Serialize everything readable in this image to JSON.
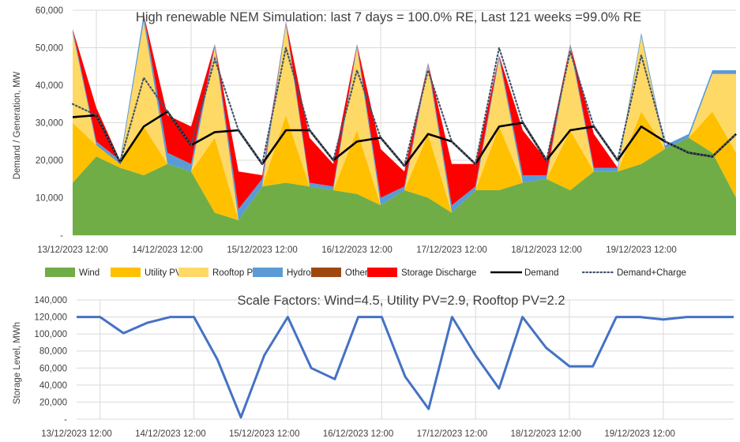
{
  "colors": {
    "wind": "#70AD47",
    "utility_pv": "#FFC000",
    "rooftop_pv": "#FFD966",
    "hydro": "#5B9BD5",
    "other": "#9E480E",
    "storage_discharge": "#FF0000",
    "demand": "#000000",
    "demand_charge": "#44546A",
    "storage_level": "#4472C4",
    "grid": "#D9D9D9",
    "text": "#404040"
  },
  "chart_data": [
    {
      "type": "area",
      "title": "High renewable NEM Simulation: last 7 days = 100.0% RE, Last 121 weeks =99.0% RE",
      "xlabel": "",
      "ylabel": "Demand / Generation, MW",
      "ylim": [
        0,
        60000
      ],
      "ytick_labels": [
        "-",
        "10,000",
        "20,000",
        "30,000",
        "40,000",
        "50,000",
        "60,000"
      ],
      "xtick_labels": [
        "13/12/2023 12:00",
        "14/12/2023 12:00",
        "15/12/2023 12:00",
        "16/12/2023 12:00",
        "17/12/2023 12:00",
        "18/12/2023 12:00",
        "19/12/2023 12:00"
      ],
      "x_hours": [
        0,
        6,
        12,
        18,
        24,
        30,
        36,
        42,
        48,
        54,
        60,
        66,
        72,
        78,
        84,
        90,
        96,
        102,
        108,
        114,
        120,
        126,
        132,
        138,
        144,
        150,
        156,
        162,
        168
      ],
      "stack_order": [
        "Wind",
        "Utility PV",
        "Rooftop PV",
        "Hydro",
        "Other",
        "Storage Discharge"
      ],
      "series": [
        {
          "name": "Wind",
          "style": "area",
          "values": [
            14000,
            21000,
            18000,
            16000,
            19000,
            17000,
            6000,
            4000,
            13000,
            14000,
            13000,
            12000,
            11000,
            8000,
            12000,
            10000,
            6000,
            12000,
            12000,
            14000,
            15000,
            12000,
            17000,
            17000,
            19000,
            23000,
            26000,
            22000,
            10000
          ]
        },
        {
          "name": "Utility PV",
          "style": "area",
          "values": [
            16000,
            3000,
            1000,
            13000,
            0,
            0,
            20000,
            0,
            0,
            18000,
            0,
            0,
            17000,
            0,
            0,
            17000,
            0,
            0,
            17000,
            0,
            0,
            16000,
            0,
            0,
            14000,
            0,
            0,
            11000,
            12000
          ]
        },
        {
          "name": "Rooftop PV",
          "style": "area",
          "values": [
            24000,
            0,
            0,
            28000,
            0,
            0,
            24000,
            0,
            0,
            24000,
            0,
            0,
            22000,
            0,
            0,
            18000,
            0,
            0,
            18000,
            0,
            0,
            22000,
            0,
            0,
            20000,
            0,
            0,
            10000,
            21000
          ]
        },
        {
          "name": "Hydro",
          "style": "area",
          "values": [
            1000,
            1000,
            1000,
            2000,
            3000,
            2000,
            1000,
            3000,
            2000,
            1000,
            1000,
            1000,
            1000,
            2000,
            1000,
            1000,
            2000,
            1000,
            1000,
            2000,
            1000,
            1000,
            1000,
            1000,
            1000,
            1000,
            1000,
            1000,
            1000
          ]
        },
        {
          "name": "Other",
          "style": "area",
          "values": [
            0,
            0,
            0,
            0,
            0,
            0,
            0,
            0,
            0,
            0,
            0,
            0,
            0,
            0,
            0,
            0,
            0,
            0,
            0,
            0,
            0,
            0,
            0,
            0,
            0,
            0,
            0,
            0,
            0
          ]
        },
        {
          "name": "Storage Discharge",
          "style": "area",
          "values": [
            0,
            9000,
            0,
            0,
            10000,
            10000,
            0,
            10000,
            1000,
            0,
            12000,
            6000,
            0,
            13000,
            4000,
            0,
            11000,
            6000,
            0,
            12000,
            4000,
            0,
            9000,
            0,
            0,
            0,
            0,
            0,
            0
          ]
        },
        {
          "name": "Demand",
          "style": "line",
          "values": [
            31500,
            32000,
            19500,
            29000,
            33000,
            24000,
            27500,
            28000,
            19000,
            28000,
            28000,
            20000,
            25000,
            26000,
            18500,
            27000,
            25000,
            19000,
            29000,
            30000,
            20000,
            28000,
            29000,
            20000,
            29000,
            25000,
            22000,
            21000,
            27000
          ]
        },
        {
          "name": "Demand+Charge",
          "style": "dotted-line",
          "values": [
            35000,
            32000,
            19500,
            42000,
            33000,
            24000,
            47000,
            28000,
            19000,
            50000,
            28000,
            20000,
            44000,
            26000,
            18500,
            44000,
            25000,
            19000,
            50000,
            30000,
            20000,
            49000,
            29000,
            20000,
            48000,
            25000,
            22000,
            21000,
            27000
          ]
        }
      ],
      "legend": {
        "placement": "bottom",
        "entries": [
          "Wind",
          "Utility PV",
          "Rooftop PV",
          "Hydro",
          "Other",
          "Storage Discharge",
          "Demand",
          "Demand+Charge"
        ]
      },
      "grid": true
    },
    {
      "type": "line",
      "title": "Scale Factors: Wind=4.5, Utility PV=2.9, Rooftop PV=2.2",
      "xlabel": "",
      "ylabel": "Storage Level, MWh",
      "ylim": [
        0,
        140000
      ],
      "ytick_labels": [
        "-",
        "20,000",
        "40,000",
        "60,000",
        "80,000",
        "100,000",
        "120,000",
        "140,000"
      ],
      "xtick_labels": [
        "13/12/2023 12:00",
        "14/12/2023 12:00",
        "15/12/2023 12:00",
        "16/12/2023 12:00",
        "17/12/2023 12:00",
        "18/12/2023 12:00",
        "19/12/2023 12:00"
      ],
      "x_hours": [
        0,
        6,
        12,
        18,
        24,
        30,
        36,
        42,
        48,
        54,
        60,
        66,
        72,
        78,
        84,
        90,
        96,
        102,
        108,
        114,
        120,
        126,
        132,
        138,
        144,
        150,
        156,
        162,
        168
      ],
      "series": [
        {
          "name": "Storage Level",
          "values": [
            120000,
            120000,
            101000,
            113000,
            120000,
            120000,
            70000,
            2000,
            75000,
            120000,
            60000,
            47000,
            120000,
            120000,
            50000,
            12000,
            120000,
            75000,
            36000,
            120000,
            84000,
            62000,
            62000,
            120000,
            120000,
            117000,
            120000,
            120000,
            120000
          ]
        }
      ],
      "grid": true
    }
  ]
}
